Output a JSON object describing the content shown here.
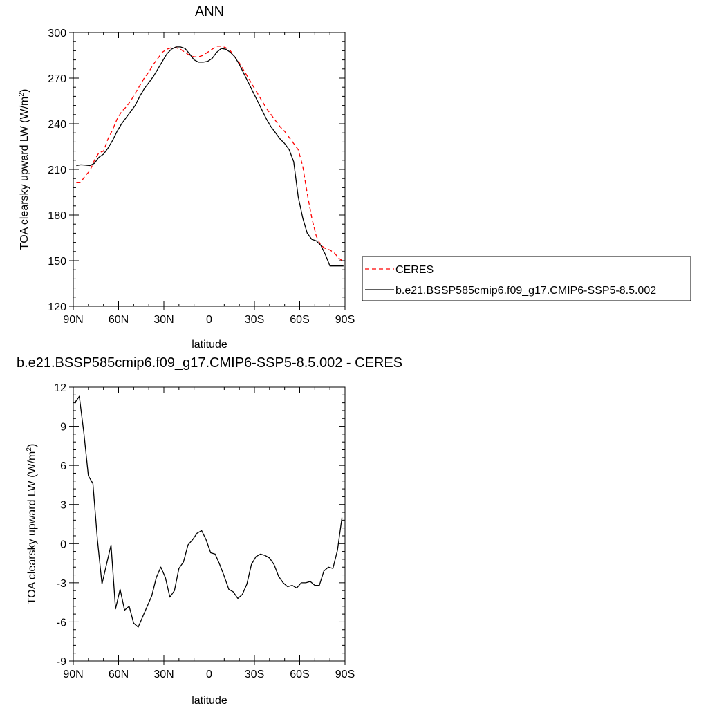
{
  "chart_data": [
    {
      "type": "line",
      "title": "ANN",
      "xlabel": "latitude",
      "ylabel": "TOA clearsky upward LW (W/m",
      "ylabel_sup": "2",
      "ylabel_close": ")",
      "xlim": [
        90,
        -90
      ],
      "ylim": [
        120,
        300
      ],
      "xticks": [
        {
          "v": 90,
          "label": "90N"
        },
        {
          "v": 60,
          "label": "60N"
        },
        {
          "v": 30,
          "label": "30N"
        },
        {
          "v": 0,
          "label": "0"
        },
        {
          "v": -30,
          "label": "30S"
        },
        {
          "v": -60,
          "label": "60S"
        },
        {
          "v": -90,
          "label": "90S"
        }
      ],
      "yticks": [
        120,
        150,
        180,
        210,
        240,
        270,
        300
      ],
      "grid": false,
      "legend_position": "right",
      "series": [
        {
          "name": "CERES",
          "color": "#ff0000",
          "dash": true,
          "x": [
            88,
            85,
            82,
            79,
            76,
            73,
            70,
            67,
            64,
            61,
            58,
            55,
            52,
            49,
            46,
            43,
            40,
            37,
            34,
            31,
            28,
            25,
            22,
            19,
            16,
            13,
            10,
            7,
            4,
            1,
            -2,
            -5,
            -8,
            -11,
            -14,
            -17,
            -20,
            -23,
            -26,
            -29,
            -32,
            -35,
            -38,
            -41,
            -44,
            -47,
            -50,
            -53,
            -56,
            -59,
            -62,
            -65,
            -68,
            -71,
            -74,
            -77,
            -80,
            -83,
            -86,
            -89
          ],
          "y": [
            201.5,
            201.5,
            206,
            209,
            216,
            221,
            222,
            230,
            236,
            243,
            248,
            251,
            255,
            260,
            265,
            270,
            274,
            279,
            283,
            287,
            289,
            290,
            290,
            289,
            287,
            285,
            284,
            284,
            285,
            287,
            289,
            291,
            291,
            290,
            288,
            284,
            280,
            275,
            270,
            265,
            260,
            255,
            250,
            246,
            242,
            238,
            235,
            231,
            227,
            223,
            212,
            194,
            178,
            166,
            160,
            158,
            157,
            155,
            151.5,
            149.5
          ]
        },
        {
          "name": "b.e21.BSSP585cmip6.f09_g17.CMIP6-SSP5-8.5.002",
          "color": "#000000",
          "dash": false,
          "x": [
            88,
            85,
            82,
            79,
            76,
            73,
            70,
            67,
            64,
            61,
            58,
            55,
            52,
            49,
            46,
            43,
            40,
            37,
            34,
            31,
            28,
            25,
            22,
            19,
            16,
            13,
            10,
            7,
            4,
            1,
            -2,
            -5,
            -8,
            -11,
            -14,
            -17,
            -20,
            -23,
            -26,
            -29,
            -32,
            -35,
            -38,
            -41,
            -44,
            -47,
            -50,
            -53,
            -56,
            -59,
            -62,
            -65,
            -68,
            -71,
            -74,
            -77,
            -80,
            -83,
            -86,
            -89
          ],
          "y": [
            212.5,
            213,
            212.8,
            212.5,
            214,
            218,
            220,
            224,
            229,
            235,
            240,
            244,
            248,
            252,
            258,
            263,
            267,
            271,
            276,
            281,
            286,
            289,
            290.5,
            290.5,
            289.5,
            286,
            282,
            280.5,
            280.5,
            281,
            283,
            287,
            289.5,
            289,
            287,
            284,
            279,
            273,
            267,
            261,
            255,
            249,
            243,
            238,
            234,
            230,
            227,
            223,
            215,
            192,
            178,
            168,
            164,
            163,
            160,
            154,
            146.5,
            146.5,
            146.5,
            146.5
          ]
        }
      ]
    },
    {
      "type": "line",
      "title": "b.e21.BSSP585cmip6.f09_g17.CMIP6-SSP5-8.5.002 - CERES",
      "xlabel": "latitude",
      "ylabel": "TOA clearsky upward LW (W/m",
      "ylabel_sup": "2",
      "ylabel_close": ")",
      "xlim": [
        90,
        -90
      ],
      "ylim": [
        -9,
        12
      ],
      "xticks": [
        {
          "v": 90,
          "label": "90N"
        },
        {
          "v": 60,
          "label": "60N"
        },
        {
          "v": 30,
          "label": "30N"
        },
        {
          "v": 0,
          "label": "0"
        },
        {
          "v": -30,
          "label": "30S"
        },
        {
          "v": -60,
          "label": "60S"
        },
        {
          "v": -90,
          "label": "90S"
        }
      ],
      "yticks": [
        -9,
        -6,
        -3,
        0,
        3,
        6,
        9,
        12
      ],
      "grid": false,
      "series": [
        {
          "color": "#000000",
          "dash": false,
          "x": [
            89,
            86,
            83,
            80,
            77,
            74,
            71,
            68,
            65,
            62,
            59,
            56,
            53,
            50,
            47,
            44,
            41,
            38,
            35,
            32,
            29,
            26,
            23,
            20,
            17,
            14,
            11,
            8,
            5,
            2,
            -1,
            -4,
            -7,
            -10,
            -13,
            -16,
            -19,
            -22,
            -25,
            -28,
            -31,
            -34,
            -37,
            -40,
            -43,
            -46,
            -49,
            -52,
            -55,
            -58,
            -61,
            -64,
            -67,
            -70,
            -73,
            -76,
            -79,
            -82,
            -85,
            -88
          ],
          "y": [
            10.8,
            11.3,
            8.5,
            5.2,
            4.6,
            0.3,
            -3.1,
            -1.6,
            -0.1,
            -5,
            -3.5,
            -5.1,
            -4.8,
            -6.1,
            -6.4,
            -5.6,
            -4.8,
            -4,
            -2.6,
            -1.8,
            -2.6,
            -4.1,
            -3.6,
            -1.9,
            -1.4,
            -0.1,
            0.3,
            0.8,
            1,
            0.3,
            -0.7,
            -0.8,
            -1.6,
            -2.5,
            -3.5,
            -3.7,
            -4.2,
            -3.9,
            -3.1,
            -1.6,
            -1,
            -0.8,
            -0.9,
            -1.1,
            -1.6,
            -2.5,
            -3,
            -3.3,
            -3.2,
            -3.4,
            -3,
            -3,
            -2.9,
            -3.2,
            -3.2,
            -2.1,
            -1.8,
            -1.9,
            -0.5,
            2
          ]
        }
      ]
    }
  ]
}
